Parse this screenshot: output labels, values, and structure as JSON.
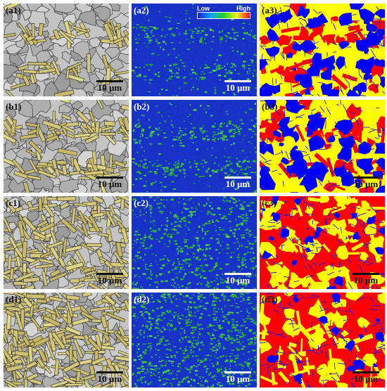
{
  "figure": {
    "rows": [
      {
        "id": "a",
        "labels": [
          "(a1)",
          "(a2)",
          "(a3)"
        ],
        "scale_text": [
          "10 μm",
          "10 μm",
          ""
        ]
      },
      {
        "id": "b",
        "labels": [
          "(b1)",
          "(b2)",
          "(b3)"
        ],
        "scale_text": [
          "10 μm",
          "10 μm",
          "10 μm"
        ]
      },
      {
        "id": "c",
        "labels": [
          "(c1)",
          "(c2)",
          "(c3)"
        ],
        "scale_text": [
          "10 μm",
          "10 μm",
          "10 μm"
        ]
      },
      {
        "id": "d",
        "labels": [
          "(d1)",
          "(d2)",
          "(d3)"
        ],
        "scale_text": [
          "10 μm",
          "10 μm",
          "10 μm"
        ]
      }
    ],
    "legend": {
      "low": "Low",
      "high": "High"
    },
    "colors": {
      "band_gray": "#b8b8b8",
      "band_yellow": "#d8c878",
      "kam_blue": "#1832c8",
      "kam_green": "#30c030",
      "phase_yellow": "#ffff00",
      "phase_red": "#ff0000",
      "phase_blue": "#0000ff"
    },
    "phase_fractions": [
      {
        "yellow": 0.62,
        "red": 0.13,
        "blue": 0.25
      },
      {
        "yellow": 0.6,
        "red": 0.16,
        "blue": 0.24
      },
      {
        "yellow": 0.35,
        "red": 0.57,
        "blue": 0.08
      },
      {
        "yellow": 0.22,
        "red": 0.73,
        "blue": 0.05
      }
    ],
    "kam_green_level": [
      0.18,
      0.24,
      0.36,
      0.48
    ]
  }
}
